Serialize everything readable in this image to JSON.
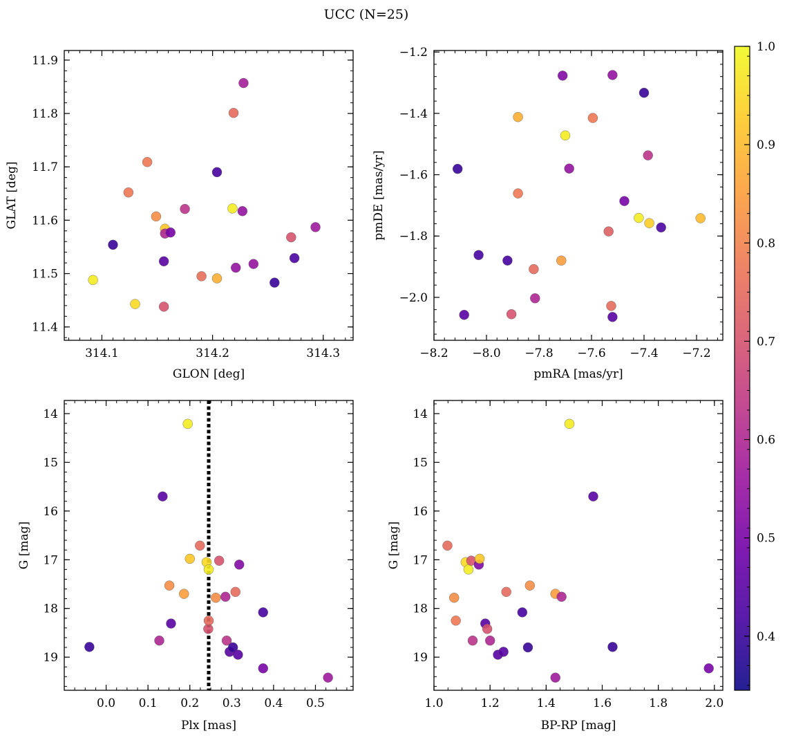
{
  "figure": {
    "title": "UCC (N=25)"
  },
  "colormap": {
    "name": "plasma",
    "stops": [
      "#0d0887",
      "#46039f",
      "#7201a8",
      "#9c179e",
      "#bd3786",
      "#d8576b",
      "#ed7953",
      "#fb9f3a",
      "#fdca26",
      "#f0f921"
    ],
    "range": [
      0.345,
      1.0
    ],
    "ticks": [
      0.4,
      0.5,
      0.6,
      0.7,
      0.8,
      0.9,
      1.0
    ],
    "tick_labels": [
      "0.4",
      "0.5",
      "0.6",
      "0.7",
      "0.8",
      "0.9",
      "1.0"
    ]
  },
  "chart_data": [
    {
      "type": "scatter",
      "name": "glon-glat",
      "xlabel": "GLON [deg]",
      "ylabel": "GLAT [deg]",
      "xlim": [
        314.066,
        314.327
      ],
      "ylim": [
        11.375,
        11.918
      ],
      "invert_y": false,
      "xticks": [
        314.1,
        314.2,
        314.3
      ],
      "xtick_labels": [
        "314.1",
        "314.2",
        "314.3"
      ],
      "yticks": [
        11.4,
        11.5,
        11.6,
        11.7,
        11.8,
        11.9
      ],
      "ytick_labels": [
        "11.4",
        "11.5",
        "11.6",
        "11.7",
        "11.8",
        "11.9"
      ],
      "minor_x": 0.01,
      "minor_y": 0.02,
      "x": [
        314.092,
        314.11,
        314.124,
        314.13,
        314.141,
        314.149,
        314.156,
        314.157,
        314.157,
        314.156,
        314.162,
        314.175,
        314.19,
        314.204,
        314.204,
        314.218,
        314.219,
        314.221,
        314.227,
        314.228,
        314.237,
        314.256,
        314.271,
        314.274,
        314.293
      ],
      "y": [
        11.488,
        11.554,
        11.652,
        11.443,
        11.709,
        11.607,
        11.523,
        11.584,
        11.575,
        11.438,
        11.577,
        11.621,
        11.495,
        11.491,
        11.69,
        11.622,
        11.801,
        11.511,
        11.617,
        11.857,
        11.518,
        11.483,
        11.568,
        11.529,
        11.587
      ],
      "c": [
        0.98,
        0.4,
        0.78,
        0.95,
        0.78,
        0.82,
        0.45,
        0.92,
        0.6,
        0.7,
        0.5,
        0.63,
        0.76,
        0.88,
        0.42,
        0.98,
        0.75,
        0.55,
        0.55,
        0.58,
        0.55,
        0.4,
        0.7,
        0.43,
        0.57
      ]
    },
    {
      "type": "scatter",
      "name": "pm",
      "xlabel": "pmRA [mas/yr]",
      "ylabel": "pmDE [mas/yr]",
      "xlim": [
        -8.2,
        -7.1
      ],
      "ylim": [
        -2.14,
        -1.195
      ],
      "invert_y": false,
      "xticks": [
        -8.2,
        -8.0,
        -7.8,
        -7.6,
        -7.4,
        -7.2
      ],
      "xtick_labels": [
        "−8.2",
        "−8.0",
        "−7.8",
        "−7.6",
        "−7.4",
        "−7.2"
      ],
      "yticks": [
        -2.0,
        -1.8,
        -1.6,
        -1.4,
        -1.2
      ],
      "ytick_labels": [
        "−2.0",
        "−1.8",
        "−1.6",
        "−1.4",
        "−1.2"
      ],
      "minor_x": 0.04,
      "minor_y": 0.04,
      "x": [
        -8.11,
        -8.085,
        -8.03,
        -7.92,
        -7.905,
        -7.88,
        -7.88,
        -7.82,
        -7.815,
        -7.715,
        -7.71,
        -7.7,
        -7.685,
        -7.595,
        -7.535,
        -7.525,
        -7.52,
        -7.52,
        -7.475,
        -7.42,
        -7.4,
        -7.385,
        -7.38,
        -7.335,
        -7.185
      ],
      "y": [
        -1.581,
        -2.057,
        -1.862,
        -1.88,
        -2.055,
        -1.412,
        -1.661,
        -1.908,
        -2.003,
        -1.88,
        -1.277,
        -1.472,
        -1.58,
        -1.415,
        -1.785,
        -2.028,
        -2.064,
        -1.275,
        -1.686,
        -1.741,
        -1.333,
        -1.537,
        -1.758,
        -1.772,
        -1.742
      ],
      "c": [
        0.4,
        0.45,
        0.42,
        0.42,
        0.7,
        0.88,
        0.78,
        0.75,
        0.6,
        0.85,
        0.52,
        0.98,
        0.55,
        0.78,
        0.73,
        0.75,
        0.45,
        0.55,
        0.5,
        0.98,
        0.4,
        0.63,
        0.93,
        0.43,
        0.9
      ]
    },
    {
      "type": "scatter",
      "name": "plx-g",
      "xlabel": "Plx [mas]",
      "ylabel": "G [mag]",
      "xlim": [
        -0.1,
        0.59
      ],
      "ylim": [
        19.68,
        13.73
      ],
      "invert_y": true,
      "xticks": [
        0.0,
        0.1,
        0.2,
        0.3,
        0.4,
        0.5
      ],
      "xtick_labels": [
        "0.0",
        "0.1",
        "0.2",
        "0.3",
        "0.4",
        "0.5"
      ],
      "yticks": [
        14,
        15,
        16,
        17,
        18,
        19
      ],
      "ytick_labels": [
        "14",
        "15",
        "16",
        "17",
        "18",
        "19"
      ],
      "minor_x": 0.025,
      "minor_y": 0.2,
      "vline": {
        "x": 0.245,
        "style": "dotted"
      },
      "x": [
        -0.04,
        0.127,
        0.135,
        0.151,
        0.155,
        0.186,
        0.195,
        0.2,
        0.224,
        0.24,
        0.244,
        0.245,
        0.245,
        0.262,
        0.27,
        0.285,
        0.288,
        0.295,
        0.303,
        0.309,
        0.315,
        0.318,
        0.375,
        0.375,
        0.53
      ],
      "y": [
        18.79,
        18.66,
        15.7,
        17.53,
        18.31,
        17.7,
        14.21,
        16.98,
        16.71,
        17.05,
        18.42,
        18.25,
        17.2,
        17.78,
        17.02,
        17.76,
        18.66,
        18.89,
        18.8,
        17.66,
        18.95,
        17.1,
        18.08,
        19.23,
        19.42
      ],
      "c": [
        0.4,
        0.6,
        0.45,
        0.82,
        0.45,
        0.85,
        0.98,
        0.92,
        0.75,
        0.95,
        0.7,
        0.75,
        0.98,
        0.82,
        0.7,
        0.6,
        0.63,
        0.45,
        0.4,
        0.75,
        0.45,
        0.52,
        0.42,
        0.5,
        0.57
      ]
    },
    {
      "type": "scatter",
      "name": "cmd",
      "xlabel": "BP-RP [mag]",
      "ylabel": "G [mag]",
      "xlim": [
        1.0,
        2.03
      ],
      "ylim": [
        19.68,
        13.73
      ],
      "invert_y": true,
      "xticks": [
        1.0,
        1.2,
        1.4,
        1.6,
        1.8,
        2.0
      ],
      "xtick_labels": [
        "1.0",
        "1.2",
        "1.4",
        "1.6",
        "1.8",
        "2.0"
      ],
      "yticks": [
        14,
        15,
        16,
        17,
        18,
        19
      ],
      "ytick_labels": [
        "14",
        "15",
        "16",
        "17",
        "18",
        "19"
      ],
      "minor_x": 0.05,
      "minor_y": 0.2,
      "x": [
        1.048,
        1.072,
        1.078,
        1.113,
        1.123,
        1.133,
        1.138,
        1.16,
        1.163,
        1.183,
        1.19,
        1.2,
        1.228,
        1.248,
        1.258,
        1.315,
        1.335,
        1.342,
        1.433,
        1.433,
        1.455,
        1.483,
        1.568,
        1.637,
        1.98
      ],
      "y": [
        16.71,
        17.78,
        18.25,
        17.05,
        17.2,
        17.02,
        18.66,
        17.1,
        16.98,
        18.31,
        18.42,
        18.66,
        18.95,
        18.89,
        17.66,
        18.08,
        18.8,
        17.53,
        17.7,
        19.42,
        17.76,
        14.21,
        15.7,
        18.79,
        19.23
      ],
      "c": [
        0.75,
        0.82,
        0.78,
        0.95,
        0.98,
        0.7,
        0.63,
        0.52,
        0.92,
        0.45,
        0.7,
        0.6,
        0.45,
        0.45,
        0.75,
        0.42,
        0.4,
        0.82,
        0.85,
        0.57,
        0.6,
        0.98,
        0.45,
        0.4,
        0.5
      ]
    }
  ]
}
